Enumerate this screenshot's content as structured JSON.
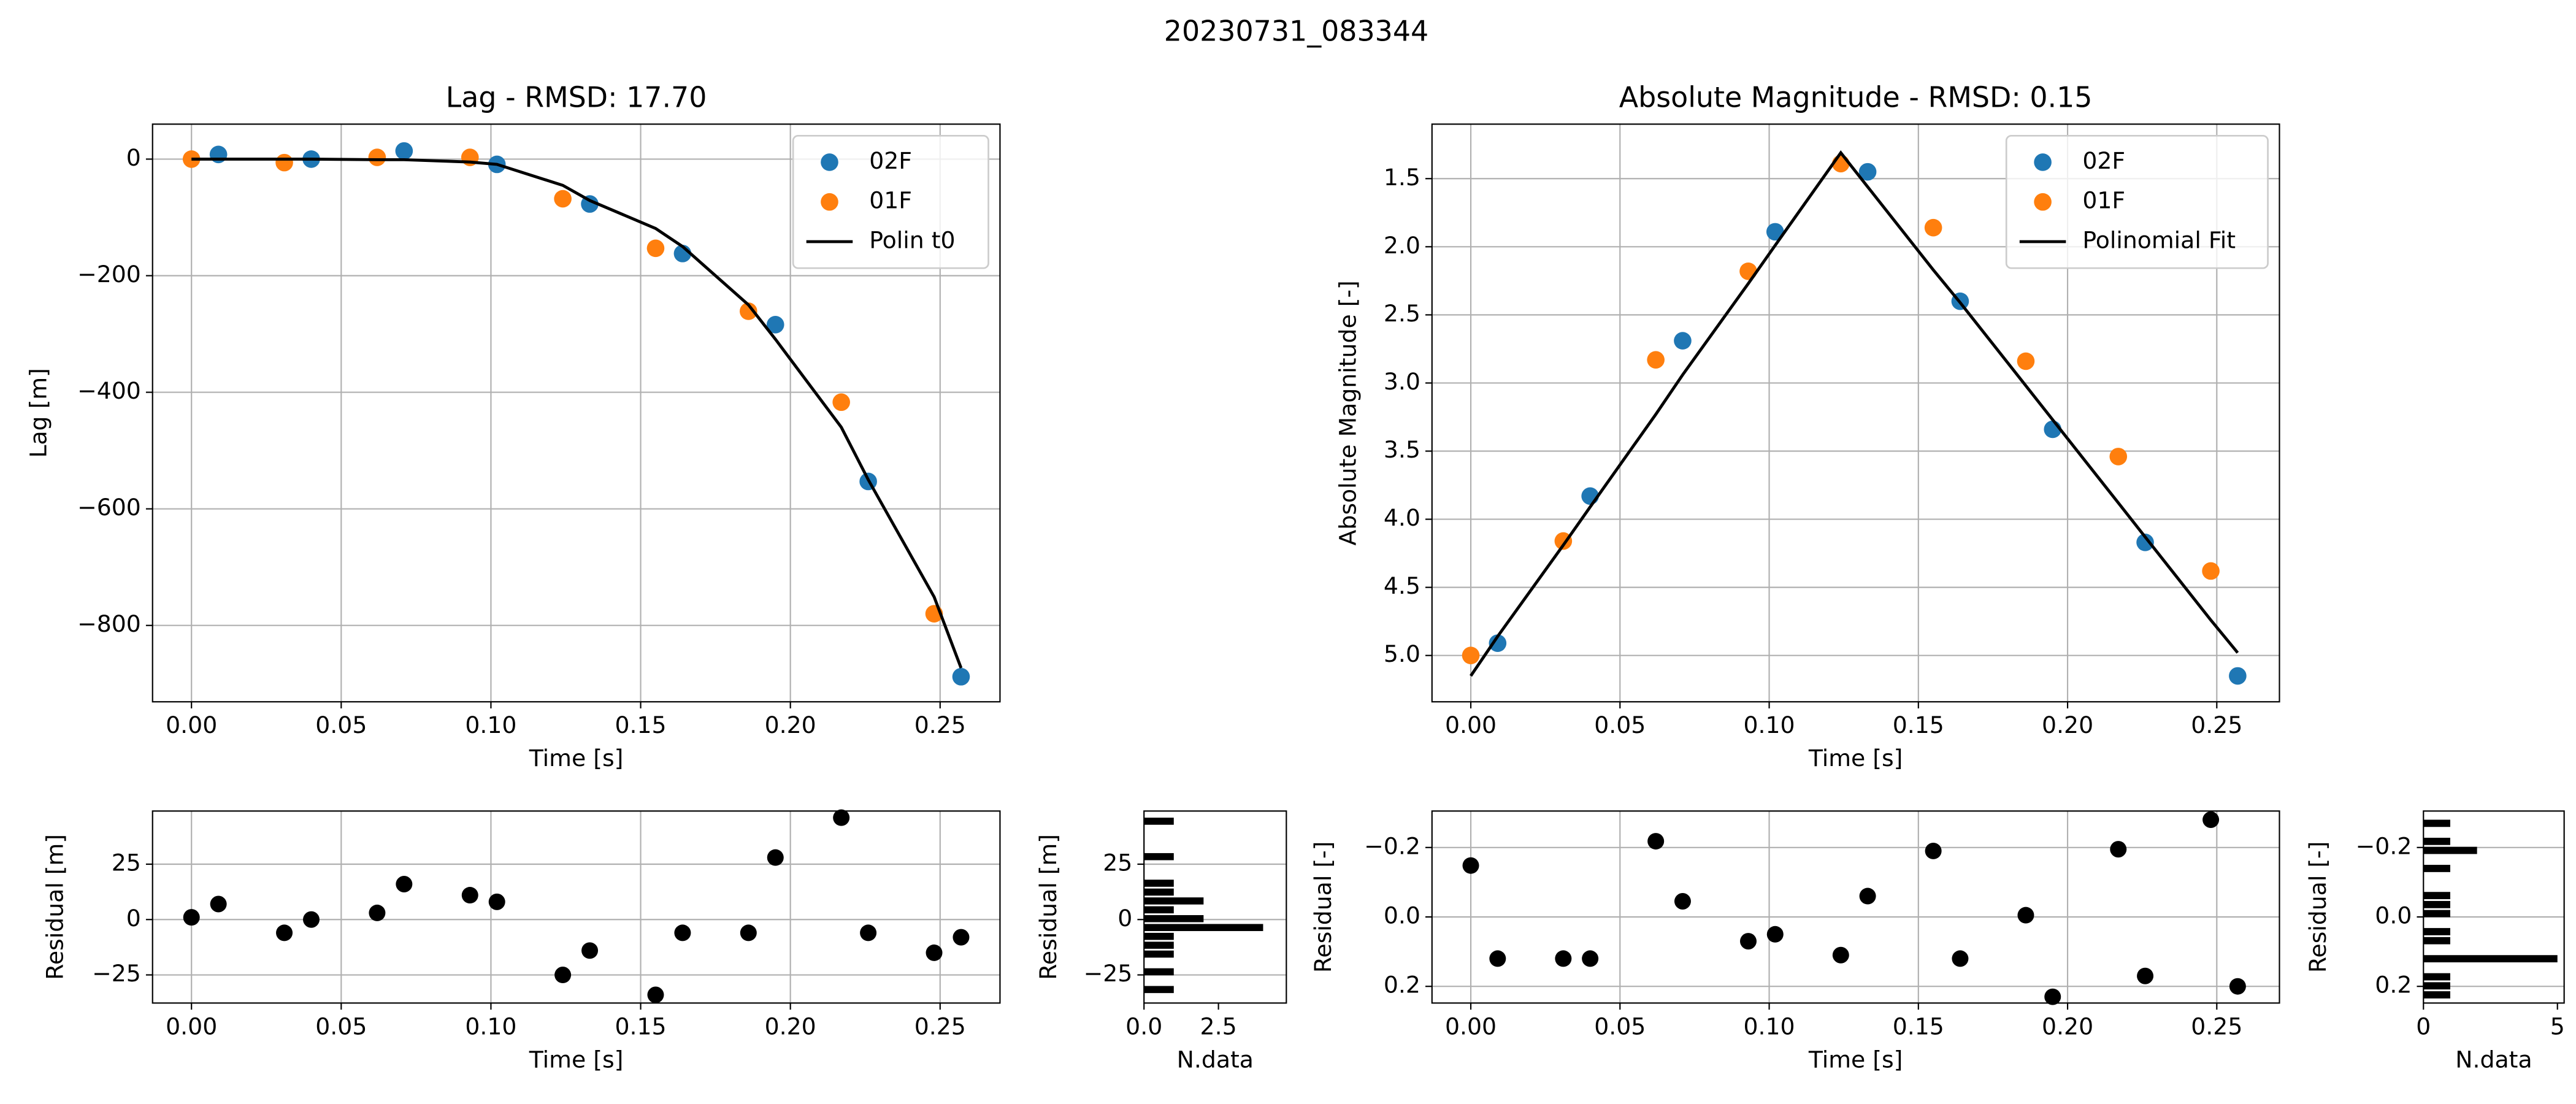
{
  "title": "20230731_083344",
  "chart_data": [
    {
      "type": "scatter",
      "title": "Lag - RMSD: 17.70",
      "xlabel": "Time [s]",
      "ylabel": "Lag [m]",
      "xlim": [
        -0.013,
        0.27
      ],
      "ylim": [
        -931,
        60
      ],
      "xticks": [
        {
          "value": 0,
          "label": "0.00"
        },
        0.05,
        {
          "value": 0.1,
          "label": "0.10"
        },
        0.15,
        {
          "value": 0.2,
          "label": "0.20"
        },
        0.25
      ],
      "yticks": [
        {
          "value": -800,
          "label": "−800"
        },
        {
          "value": -600,
          "label": "−600"
        },
        {
          "value": -400,
          "label": "−400"
        },
        {
          "value": -200,
          "label": "−200"
        },
        0
      ],
      "grid": "both",
      "legend": "upper right",
      "series": [
        {
          "name": "02F",
          "color": "#1f77b4",
          "x": [
            0.009,
            0.04,
            0.071,
            0.102,
            0.133,
            0.164,
            0.195,
            0.226,
            0.257
          ],
          "values": [
            8,
            0,
            14,
            -9,
            -77,
            -162,
            -284,
            -553,
            -888
          ]
        },
        {
          "name": "01F",
          "color": "#ff7f0e",
          "x": [
            0,
            0.031,
            0.062,
            0.093,
            0.124,
            0.155,
            0.186,
            0.217,
            0.248
          ],
          "values": [
            0,
            -6,
            3,
            3,
            -68,
            -153,
            -261,
            -417,
            -780
          ]
        },
        {
          "name": "Polin t0",
          "color": "#000000",
          "type": "line",
          "x": [
            0,
            0.009,
            0.031,
            0.04,
            0.062,
            0.071,
            0.093,
            0.102,
            0.124,
            0.133,
            0.155,
            0.164,
            0.186,
            0.195,
            0.217,
            0.226,
            0.248,
            0.257
          ],
          "values": [
            0,
            0,
            0,
            0,
            -1,
            -1,
            -5,
            -9,
            -45,
            -71,
            -119,
            -150,
            -250,
            -309,
            -460,
            -550,
            -751,
            -873
          ]
        }
      ]
    },
    {
      "type": "scatter",
      "title": "Absolute Magnitude - RMSD: 0.15",
      "xlabel": "Time [s]",
      "ylabel": "Absolute Magnitude [-]",
      "xlim": [
        -0.013,
        0.271
      ],
      "ylim": [
        5.34,
        1.1
      ],
      "xticks": [
        {
          "value": 0,
          "label": "0.00"
        },
        0.05,
        {
          "value": 0.1,
          "label": "0.10"
        },
        0.15,
        {
          "value": 0.2,
          "label": "0.20"
        },
        0.25
      ],
      "yticks": [
        1.5,
        {
          "value": 2,
          "label": "2.0"
        },
        2.5,
        {
          "value": 3,
          "label": "3.0"
        },
        3.5,
        {
          "value": 4,
          "label": "4.0"
        },
        4.5,
        {
          "value": 5,
          "label": "5.0"
        }
      ],
      "grid": "both",
      "legend": "upper right",
      "series": [
        {
          "name": "02F",
          "color": "#1f77b4",
          "x": [
            0.009,
            0.04,
            0.071,
            0.102,
            0.133,
            0.164,
            0.195,
            0.226,
            0.257
          ],
          "values": [
            4.91,
            3.83,
            2.69,
            1.89,
            1.45,
            2.4,
            3.34,
            4.17,
            5.15
          ]
        },
        {
          "name": "01F",
          "color": "#ff7f0e",
          "x": [
            0,
            0.031,
            0.062,
            0.093,
            0.124,
            0.155,
            0.186,
            0.217,
            0.248
          ],
          "values": [
            5.0,
            4.16,
            2.83,
            2.18,
            1.39,
            1.86,
            2.84,
            3.54,
            4.38
          ]
        },
        {
          "name": "Polinomial Fit",
          "color": "#000000",
          "type": "line",
          "x": [
            0,
            0.009,
            0.031,
            0.04,
            0.062,
            0.071,
            0.093,
            0.102,
            0.124,
            0.133,
            0.155,
            0.164,
            0.186,
            0.195,
            0.217,
            0.226,
            0.248,
            0.257
          ],
          "values": [
            5.15,
            4.86,
            4.19,
            3.91,
            3.23,
            2.94,
            2.27,
            1.99,
            1.31,
            1.56,
            2.17,
            2.41,
            3.02,
            3.27,
            3.88,
            4.13,
            4.74,
            4.98
          ]
        }
      ]
    },
    {
      "type": "scatter",
      "xlabel": "Time [s]",
      "ylabel": "Residual [m]",
      "xlim": [
        -0.013,
        0.27
      ],
      "ylim": [
        -37.7,
        49
      ],
      "xticks": [
        {
          "value": 0,
          "label": "0.00"
        },
        0.05,
        {
          "value": 0.1,
          "label": "0.10"
        },
        0.15,
        {
          "value": 0.2,
          "label": "0.20"
        },
        0.25
      ],
      "yticks": [
        {
          "value": -25,
          "label": "−25"
        },
        0,
        25
      ],
      "grid": "both",
      "color": "#000000",
      "x": [
        0,
        0.009,
        0.031,
        0.04,
        0.062,
        0.071,
        0.093,
        0.102,
        0.124,
        0.133,
        0.155,
        0.164,
        0.186,
        0.195,
        0.217,
        0.226,
        0.248,
        0.257
      ],
      "values": [
        1,
        7,
        -6,
        0,
        3,
        16,
        11,
        8,
        -25,
        -14,
        -34,
        -6,
        -6,
        28,
        46,
        -6,
        -15,
        -8
      ]
    },
    {
      "type": "histogram",
      "orientation": "horizontal",
      "xlabel": "N.data",
      "ylabel": "Residual [m]",
      "xlim": [
        0,
        4.78
      ],
      "ylim": [
        -37.7,
        49
      ],
      "xticks": [
        {
          "value": 0,
          "label": "0.0"
        },
        2.5
      ],
      "yticks": [
        {
          "value": -25,
          "label": "−25"
        },
        0,
        25
      ],
      "grid": "y",
      "color": "#000000",
      "bins": [
        -34,
        -30,
        -26,
        -22,
        -18,
        -14,
        -10,
        -6,
        -2,
        2,
        6,
        10,
        14,
        18,
        22,
        26,
        30,
        34,
        38,
        42,
        46
      ],
      "values": [
        1,
        0,
        1,
        0,
        1,
        1,
        1,
        4,
        2,
        1,
        2,
        1,
        1,
        0,
        0,
        1,
        0,
        0,
        0,
        1
      ]
    },
    {
      "type": "scatter",
      "xlabel": "Time [s]",
      "ylabel": "Residual [-]",
      "xlim": [
        -0.013,
        0.271
      ],
      "ylim": [
        0.248,
        -0.305
      ],
      "xticks": [
        {
          "value": 0,
          "label": "0.00"
        },
        0.05,
        {
          "value": 0.1,
          "label": "0.10"
        },
        0.15,
        {
          "value": 0.2,
          "label": "0.20"
        },
        0.25
      ],
      "yticks": [
        {
          "value": -0.2,
          "label": "−0.2"
        },
        {
          "value": 0,
          "label": "0.0"
        },
        0.2
      ],
      "grid": "both",
      "color": "#000000",
      "x": [
        0,
        0.009,
        0.031,
        0.04,
        0.062,
        0.071,
        0.093,
        0.102,
        0.124,
        0.133,
        0.155,
        0.164,
        0.186,
        0.195,
        0.217,
        0.226,
        0.248,
        0.257
      ],
      "values": [
        -0.148,
        0.12,
        0.12,
        0.12,
        -0.218,
        -0.045,
        0.07,
        0.05,
        0.11,
        -0.06,
        -0.19,
        0.12,
        -0.005,
        0.23,
        -0.195,
        0.17,
        -0.28,
        0.2
      ]
    },
    {
      "type": "histogram",
      "orientation": "horizontal",
      "xlabel": "N.data",
      "ylabel": "Residual [-]",
      "xlim": [
        0,
        5.25
      ],
      "ylim": [
        0.248,
        -0.305
      ],
      "xticks": [
        0,
        5
      ],
      "yticks": [
        {
          "value": -0.2,
          "label": "−0.2"
        },
        {
          "value": 0,
          "label": "0.0"
        },
        0.2
      ],
      "grid": "y",
      "color": "#000000",
      "bins": [
        -0.28,
        -0.254,
        -0.228,
        -0.202,
        -0.176,
        -0.15,
        -0.124,
        -0.098,
        -0.072,
        -0.046,
        -0.02,
        0.006,
        0.032,
        0.058,
        0.084,
        0.11,
        0.136,
        0.162,
        0.188,
        0.214,
        0.24
      ],
      "values": [
        1,
        0,
        1,
        2,
        0,
        1,
        0,
        0,
        1,
        1,
        1,
        0,
        1,
        1,
        0,
        5,
        0,
        1,
        1,
        1
      ]
    }
  ]
}
